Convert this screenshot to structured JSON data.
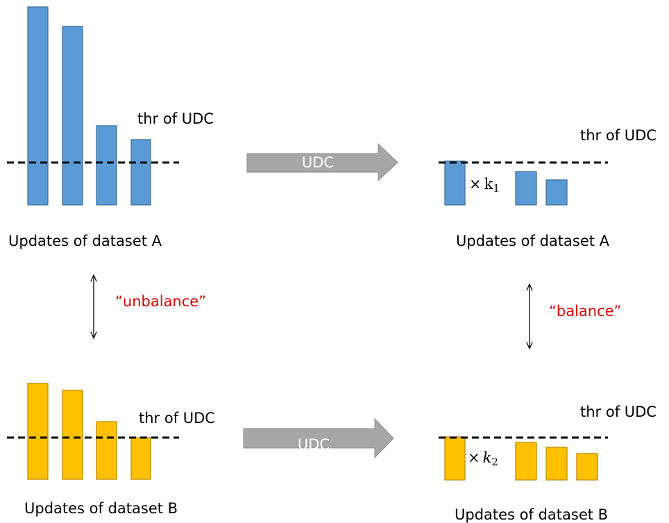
{
  "panels": [
    {
      "threshold_label": "thr of UDC",
      "caption": "Updates of dataset A"
    },
    {
      "threshold_label": "thr of UDC",
      "caption": "Updates of dataset A",
      "factor": {
        "sign": "×",
        "symbol": "k",
        "index": "1"
      }
    },
    {
      "threshold_label": "thr of UDC",
      "caption": "Updates of dataset B"
    },
    {
      "threshold_label": "thr of UDC",
      "caption": "Updates of dataset B",
      "factor": {
        "sign": "×",
        "symbol": "k",
        "index": "2"
      }
    }
  ],
  "arrows": [
    {
      "label": "UDC"
    },
    {
      "label": "UDC"
    }
  ],
  "relations": [
    {
      "label": "“unbalance”"
    },
    {
      "label": "“balance”"
    }
  ]
}
